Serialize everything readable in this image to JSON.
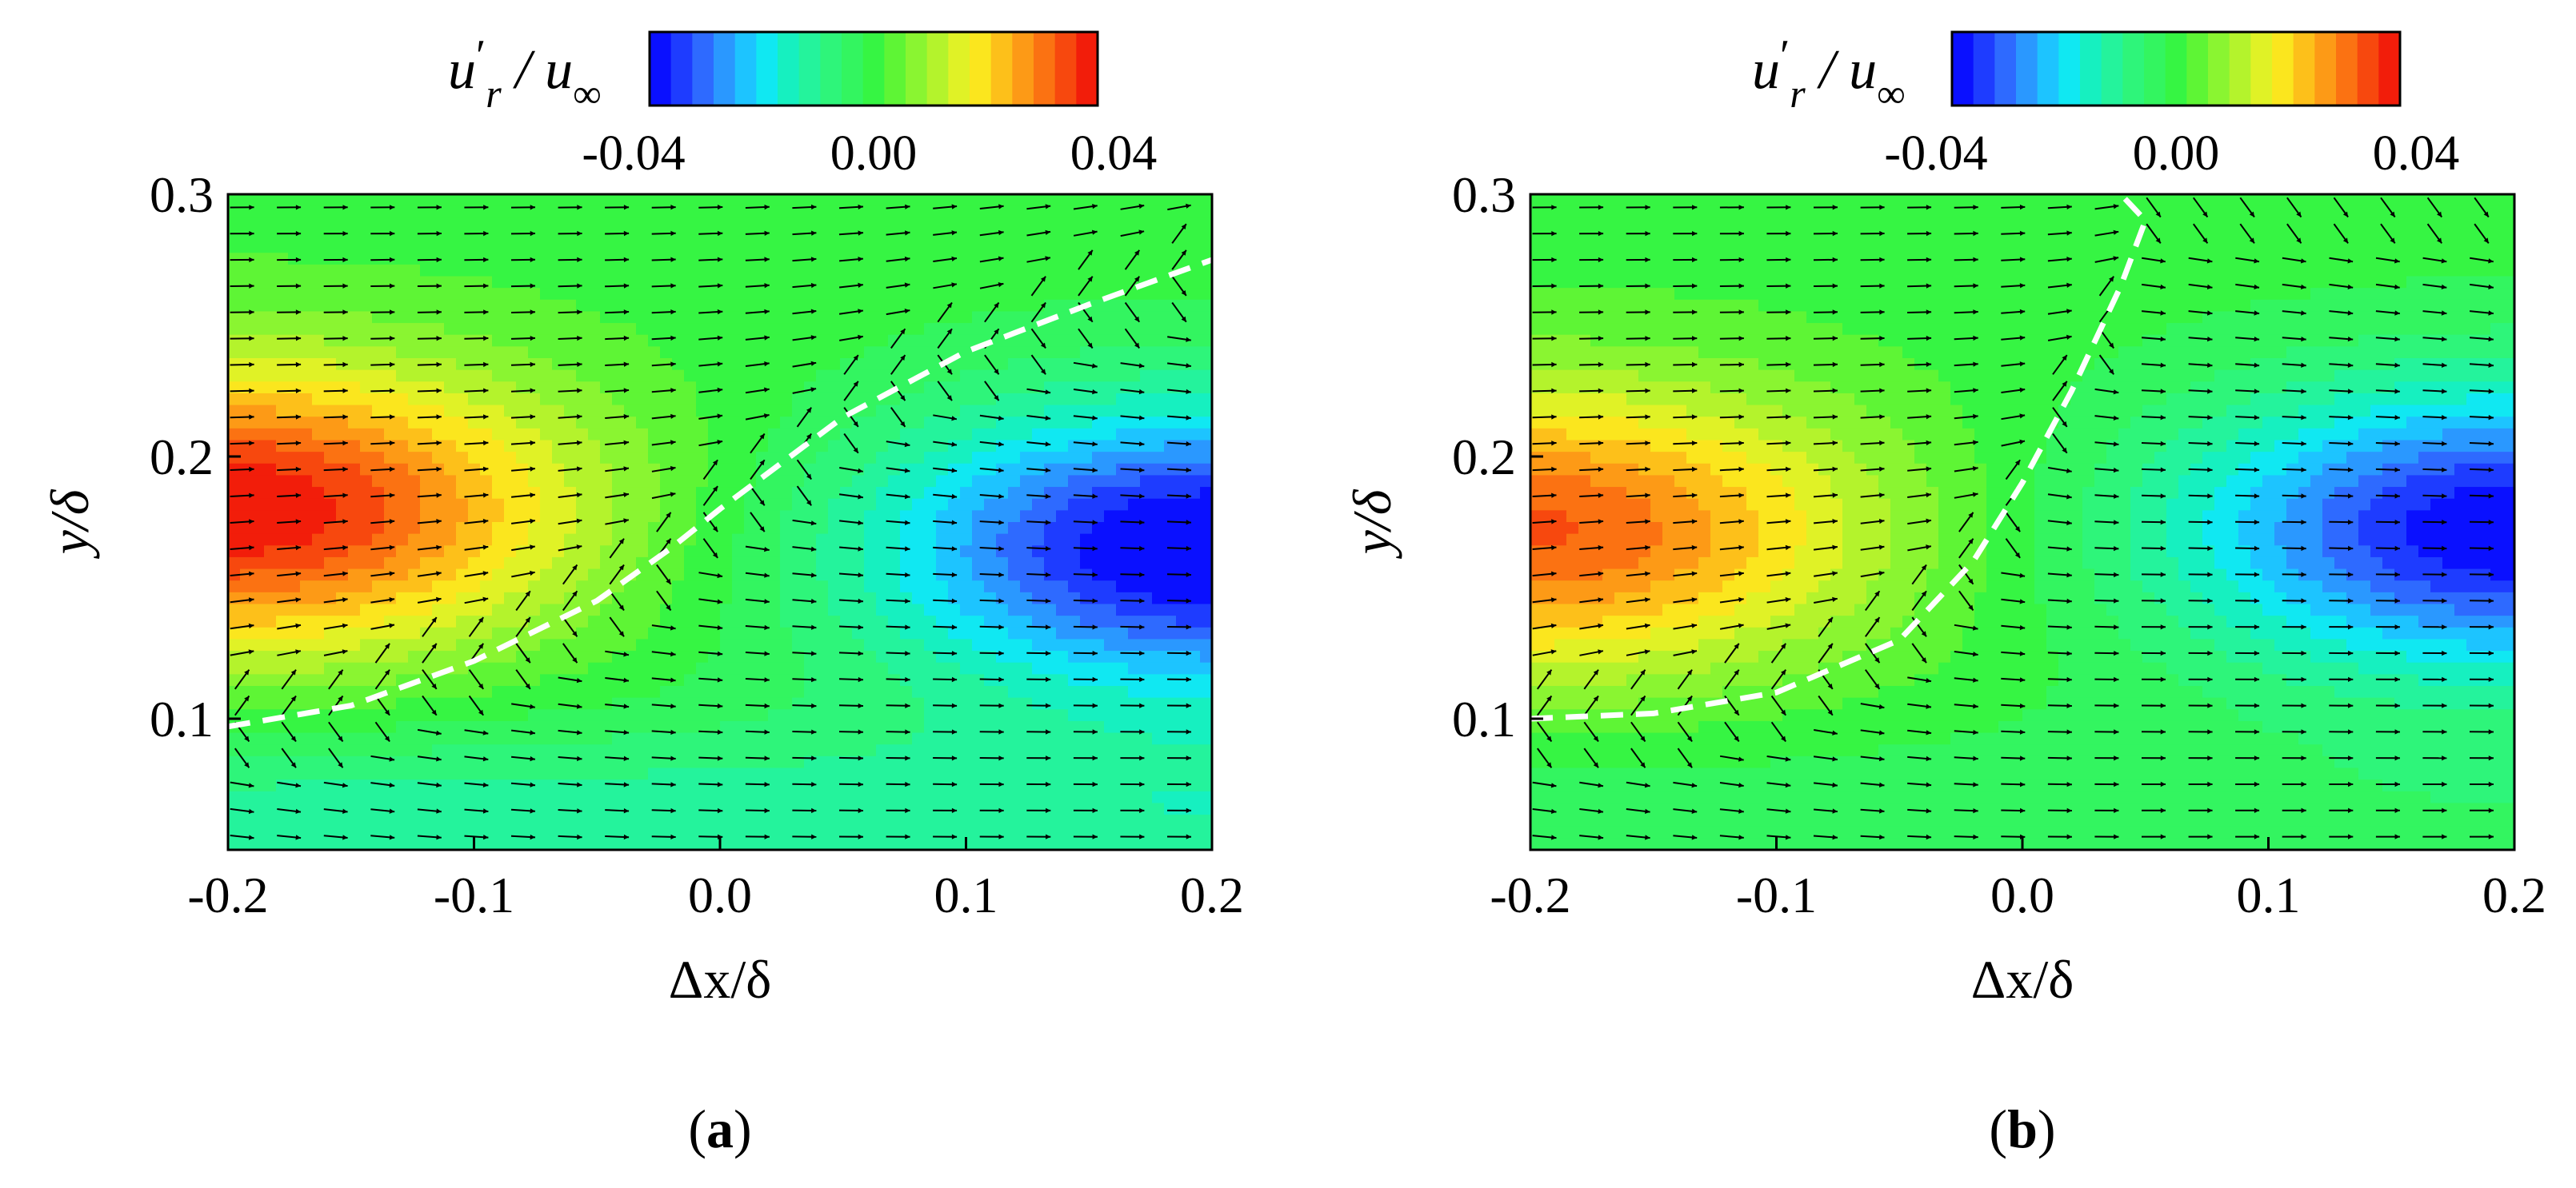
{
  "chart_data": [
    {
      "type": "heatmap",
      "panel_label": "(a)",
      "colorbar": {
        "title_main": "u",
        "title_sup": "′",
        "title_sub": "r",
        "title_rest": " / u",
        "title_rest_sub": "∞",
        "ticks": [
          "-0.04",
          "0.00",
          "0.04"
        ],
        "range": [
          -0.04,
          0.04
        ],
        "levels": 21
      },
      "xlabel": "Δx/δ",
      "ylabel": "y/δ",
      "xlim": [
        -0.2,
        0.2
      ],
      "ylim": [
        0.05,
        0.3
      ],
      "xticks": [
        "-0.2",
        "-0.1",
        "0.0",
        "0.1",
        "0.2"
      ],
      "yticks": [
        "0.1",
        "0.2",
        "0.3"
      ],
      "field_peaks": [
        {
          "kind": "max",
          "x": -0.2,
          "y": 0.18,
          "value": 0.04
        },
        {
          "kind": "min",
          "x": 0.2,
          "y": 0.165,
          "value": -0.042
        }
      ],
      "dashed_line": {
        "points": [
          [
            -0.2,
            0.097
          ],
          [
            -0.15,
            0.105
          ],
          [
            -0.1,
            0.122
          ],
          [
            -0.05,
            0.145
          ],
          [
            -0.02,
            0.165
          ],
          [
            0.0,
            0.18
          ],
          [
            0.05,
            0.215
          ],
          [
            0.1,
            0.24
          ],
          [
            0.15,
            0.258
          ],
          [
            0.2,
            0.275
          ]
        ]
      }
    },
    {
      "type": "heatmap",
      "panel_label": "(b)",
      "colorbar": {
        "title_main": "u",
        "title_sup": "′",
        "title_sub": "r",
        "title_rest": " / u",
        "title_rest_sub": "∞",
        "ticks": [
          "-0.04",
          "0.00",
          "0.04"
        ],
        "range": [
          -0.04,
          0.04
        ],
        "levels": 21
      },
      "xlabel": "Δx/δ",
      "ylabel": "y/δ",
      "xlim": [
        -0.2,
        0.2
      ],
      "ylim": [
        0.05,
        0.3
      ],
      "xticks": [
        "-0.2",
        "-0.1",
        "0.0",
        "0.1",
        "0.2"
      ],
      "yticks": [
        "0.1",
        "0.2",
        "0.3"
      ],
      "field_peaks": [
        {
          "kind": "max",
          "x": -0.2,
          "y": 0.172,
          "value": 0.033
        },
        {
          "kind": "min",
          "x": 0.2,
          "y": 0.172,
          "value": -0.04
        }
      ],
      "dashed_line": {
        "points": [
          [
            -0.2,
            0.1
          ],
          [
            -0.15,
            0.102
          ],
          [
            -0.1,
            0.11
          ],
          [
            -0.05,
            0.13
          ],
          [
            -0.02,
            0.16
          ],
          [
            0.0,
            0.19
          ],
          [
            0.02,
            0.225
          ],
          [
            0.04,
            0.265
          ],
          [
            0.05,
            0.29
          ],
          [
            0.04,
            0.3
          ]
        ]
      }
    }
  ],
  "colors": {
    "colormap": [
      "#0a10ff",
      "#1e3cff",
      "#2e6aff",
      "#2a98ff",
      "#1dc4ff",
      "#10e8f2",
      "#16f0c0",
      "#24f39c",
      "#2ef57a",
      "#33f560",
      "#36f543",
      "#5ef535",
      "#8af531",
      "#b4f32c",
      "#e0f226",
      "#fbe61e",
      "#fdc01a",
      "#fd9a16",
      "#fb7212",
      "#f7480e",
      "#f21d0a"
    ],
    "dashed_line": "#ffffff"
  }
}
